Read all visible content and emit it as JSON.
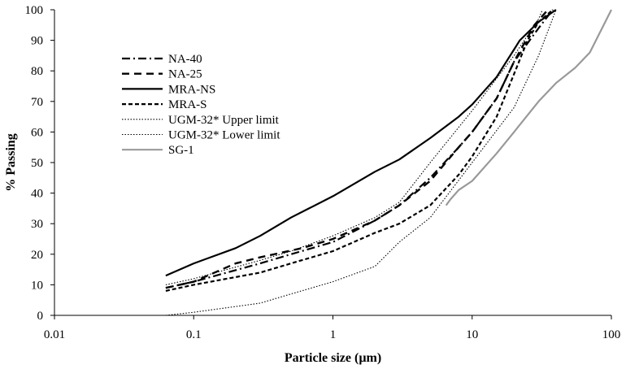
{
  "chart_data": {
    "type": "line",
    "title": "",
    "xlabel": "Particle size (µm)",
    "ylabel": "% Passing",
    "xscale": "log",
    "xlim": [
      0.01,
      100
    ],
    "ylim": [
      0,
      100
    ],
    "x_ticks": [
      0.01,
      0.1,
      1,
      10,
      100
    ],
    "x_tick_labels": [
      "0.01",
      "0.1",
      "1",
      "10",
      "100"
    ],
    "y_ticks": [
      0,
      10,
      20,
      30,
      40,
      50,
      60,
      70,
      80,
      90,
      100
    ],
    "y_tick_labels": [
      "0",
      "10",
      "20",
      "30",
      "40",
      "50",
      "60",
      "70",
      "80",
      "90",
      "100"
    ],
    "grid": false,
    "legend_position": "left",
    "series": [
      {
        "name": "NA-40",
        "style": "dash-dot",
        "color": "#000000",
        "points": [
          [
            0.063,
            9
          ],
          [
            0.1,
            11
          ],
          [
            0.3,
            17
          ],
          [
            0.5,
            20
          ],
          [
            1,
            24
          ],
          [
            2,
            31
          ],
          [
            3,
            36
          ],
          [
            5,
            45
          ],
          [
            8,
            55
          ],
          [
            10,
            60
          ],
          [
            15,
            71
          ],
          [
            20,
            83
          ],
          [
            30,
            94
          ],
          [
            38,
            100
          ]
        ]
      },
      {
        "name": "NA-25",
        "style": "dash",
        "color": "#000000",
        "points": [
          [
            0.063,
            9
          ],
          [
            0.1,
            11
          ],
          [
            0.2,
            17
          ],
          [
            0.3,
            19
          ],
          [
            0.6,
            22
          ],
          [
            1,
            25
          ],
          [
            2,
            31
          ],
          [
            3,
            36
          ],
          [
            5,
            44
          ],
          [
            8,
            55
          ],
          [
            10,
            60
          ],
          [
            15,
            71
          ],
          [
            20,
            83
          ],
          [
            28,
            95
          ],
          [
            35,
            100
          ]
        ]
      },
      {
        "name": "MRA-NS",
        "style": "solid",
        "color": "#000000",
        "points": [
          [
            0.063,
            13
          ],
          [
            0.1,
            17
          ],
          [
            0.2,
            22
          ],
          [
            0.3,
            26
          ],
          [
            0.5,
            32
          ],
          [
            1,
            39
          ],
          [
            2,
            47
          ],
          [
            3,
            51
          ],
          [
            5,
            58
          ],
          [
            8,
            65
          ],
          [
            10,
            69
          ],
          [
            15,
            78
          ],
          [
            20,
            87
          ],
          [
            22,
            90
          ],
          [
            30,
            96
          ],
          [
            40,
            100
          ]
        ]
      },
      {
        "name": "MRA-S",
        "style": "short-dash",
        "color": "#000000",
        "points": [
          [
            0.063,
            8
          ],
          [
            0.1,
            10
          ],
          [
            0.3,
            14
          ],
          [
            0.5,
            17
          ],
          [
            1,
            21
          ],
          [
            2,
            27
          ],
          [
            3,
            30
          ],
          [
            5,
            36
          ],
          [
            8,
            46
          ],
          [
            10,
            52
          ],
          [
            15,
            65
          ],
          [
            20,
            79
          ],
          [
            25,
            90
          ],
          [
            30,
            96
          ],
          [
            38,
            100
          ]
        ]
      },
      {
        "name": "UGM-32* Upper limit",
        "style": "dotted",
        "color": "#000000",
        "points": [
          [
            0.063,
            10
          ],
          [
            0.1,
            12
          ],
          [
            0.3,
            18
          ],
          [
            0.5,
            21
          ],
          [
            1,
            26
          ],
          [
            2,
            32
          ],
          [
            3,
            37
          ],
          [
            5,
            50
          ],
          [
            10,
            67
          ],
          [
            20,
            85
          ],
          [
            30,
            97
          ],
          [
            32,
            100
          ]
        ]
      },
      {
        "name": "UGM-32* Lower limit",
        "style": "dotted",
        "color": "#000000",
        "points": [
          [
            0.063,
            0
          ],
          [
            0.1,
            1
          ],
          [
            0.3,
            4
          ],
          [
            0.5,
            7
          ],
          [
            1,
            11
          ],
          [
            2,
            16
          ],
          [
            3,
            24
          ],
          [
            5,
            32
          ],
          [
            10,
            50
          ],
          [
            20,
            68
          ],
          [
            30,
            85
          ],
          [
            40,
            100
          ]
        ]
      },
      {
        "name": "SG-1",
        "style": "solid",
        "color": "#999999",
        "points": [
          [
            6.5,
            36
          ],
          [
            7,
            38
          ],
          [
            8,
            41
          ],
          [
            10,
            44
          ],
          [
            15,
            53
          ],
          [
            20,
            60
          ],
          [
            30,
            70
          ],
          [
            40,
            76
          ],
          [
            55,
            81
          ],
          [
            70,
            86
          ],
          [
            100,
            100
          ]
        ]
      }
    ]
  }
}
